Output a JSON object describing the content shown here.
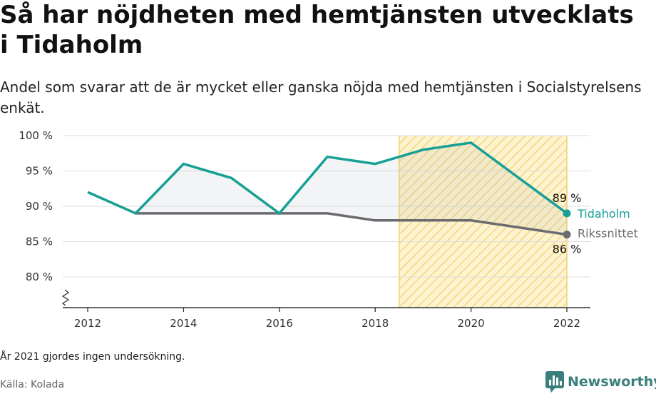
{
  "title": "Så har nöjdheten med hemtjänsten utvecklats i Tidaholm",
  "subtitle": "Andel som svarar att de är mycket eller ganska nöjda med hemtjänsten i Socialstyrelsens enkät.",
  "note": "År 2021 gjordes ingen undersökning.",
  "source": "Källa: Kolada",
  "brand": {
    "name": "Newsworthy",
    "icon": "bar-chart-speech-bubble-icon"
  },
  "chart_data": {
    "type": "line",
    "x": [
      2012,
      2013,
      2014,
      2015,
      2016,
      2017,
      2018,
      2019,
      2020,
      2022
    ],
    "x_ticks": [
      2012,
      2014,
      2016,
      2018,
      2020,
      2022
    ],
    "y_ticks": [
      80,
      85,
      90,
      95,
      100
    ],
    "y_tick_labels": [
      "80 %",
      "85 %",
      "90 %",
      "95 %",
      "100 %"
    ],
    "ylim": [
      80,
      100
    ],
    "y_axis_broken": true,
    "grid": true,
    "legend": "direct-labels-right",
    "highlight_range": [
      2018.5,
      2022
    ],
    "series": [
      {
        "name": "Tidaholm",
        "color": "#16a096",
        "x": [
          2012,
          2013,
          2014,
          2015,
          2016,
          2017,
          2018,
          2019,
          2020,
          2022
        ],
        "values": [
          92,
          89,
          96,
          94,
          89,
          97,
          96,
          98,
          99,
          89
        ],
        "end_label": "89 %"
      },
      {
        "name": "Rikssnittet",
        "color": "#6b6b70",
        "x": [
          2013,
          2014,
          2015,
          2016,
          2017,
          2018,
          2019,
          2020,
          2022
        ],
        "values": [
          89,
          89,
          89,
          89,
          89,
          88,
          88,
          88,
          86
        ],
        "end_label": "86 %"
      }
    ]
  }
}
